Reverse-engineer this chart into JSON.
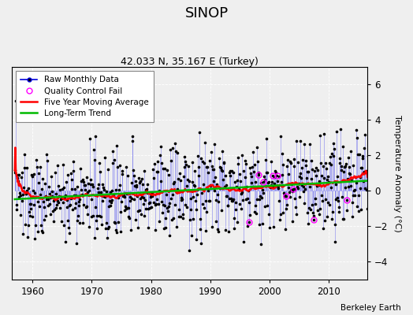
{
  "title": "SINOP",
  "subtitle": "42.033 N, 35.167 E (Turkey)",
  "ylabel": "Temperature Anomaly (°C)",
  "credit": "Berkeley Earth",
  "xlim": [
    1956.5,
    2016.5
  ],
  "ylim": [
    -5,
    7
  ],
  "yticks": [
    -4,
    -2,
    0,
    2,
    4,
    6
  ],
  "xticks": [
    1960,
    1970,
    1980,
    1990,
    2000,
    2010
  ],
  "bar_color": "#5555ee",
  "marker_color": "#000000",
  "ma_color": "#ff0000",
  "trend_color": "#00bb00",
  "qc_color": "#ff00ff",
  "background_color": "#efefef",
  "grid_color": "#ffffff",
  "years_start": 1957,
  "years_end": 2016,
  "noise_std": 1.4,
  "trend_slope": 0.018,
  "seed": 137
}
